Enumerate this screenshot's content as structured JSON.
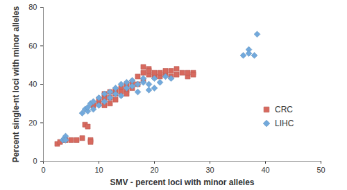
{
  "chart_data": {
    "type": "scatter",
    "x_label": "SMV - percent loci with minor alleles",
    "y_label": "Percent single-nt loci with minor alleles",
    "xlim": [
      0,
      50
    ],
    "xticks": [
      0,
      10,
      20,
      30,
      40,
      50
    ],
    "ylim": [
      0,
      80
    ],
    "yticks": [
      0,
      20,
      40,
      60,
      80
    ],
    "grid": false,
    "legend": "right",
    "series": [
      {
        "name": "CRC",
        "color": "#d7695e",
        "marker": "square",
        "x": [
          2.5,
          3,
          4,
          5,
          6,
          7,
          7.5,
          8,
          8.5,
          8.5,
          9,
          10,
          10,
          11,
          11,
          11,
          12,
          12,
          12,
          13,
          13,
          13,
          14,
          14,
          15,
          15,
          15,
          16,
          16,
          17,
          17,
          18,
          18,
          18,
          19,
          19,
          19,
          20,
          20,
          21,
          21,
          22,
          22,
          23,
          23,
          24,
          24,
          25,
          26,
          26,
          27,
          27
        ],
        "values": [
          9,
          10,
          11,
          11,
          11,
          12,
          19,
          18,
          11,
          10,
          29,
          30,
          32,
          33,
          35,
          29,
          33,
          36,
          30,
          35,
          37,
          32,
          38,
          36,
          37,
          40,
          35,
          38,
          41,
          44,
          40,
          42,
          49,
          46,
          45,
          48,
          47,
          44,
          46,
          44,
          46,
          45,
          47,
          44,
          47,
          45,
          48,
          46,
          44,
          46,
          46,
          45
        ]
      },
      {
        "name": "LIHC",
        "color": "#72a9dc",
        "marker": "diamond",
        "x": [
          3.5,
          3.8,
          4,
          4,
          7,
          7.5,
          8,
          8,
          8.5,
          9,
          9,
          10,
          10,
          11,
          11,
          12,
          12,
          13,
          13,
          14,
          14,
          15,
          15,
          16,
          16,
          17,
          17,
          18,
          18,
          19,
          19,
          20,
          20,
          21,
          22,
          23,
          36,
          37,
          37,
          38,
          38.5
        ],
        "values": [
          11,
          12,
          13,
          11,
          25,
          27,
          26,
          28,
          30,
          27,
          31,
          33,
          29,
          31,
          35,
          33,
          36,
          35,
          38,
          34,
          40,
          38,
          41,
          39,
          42,
          40,
          36,
          41,
          43,
          37,
          40,
          43,
          38,
          41,
          44,
          43,
          55,
          58,
          56,
          55,
          66
        ]
      }
    ]
  }
}
